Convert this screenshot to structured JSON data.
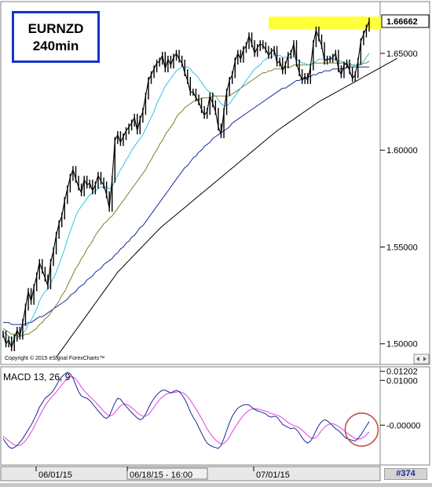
{
  "title": {
    "symbol": "EURNZD",
    "timeframe": "240min"
  },
  "copyright": "Copyright © 2015 eSignal ForexCharts™",
  "macd_label": "MACD 13, 26, 9",
  "chart_id": "#374",
  "colors": {
    "price": "#000000",
    "ma_cyan": "#2ec5e8",
    "ma_olive": "#8a7a2a",
    "ma_blue": "#1a2a9a",
    "ma_black": "#000000",
    "highlight": "#ffff3a",
    "macd_line": "#1a2a9a",
    "signal_line": "#e040e0",
    "circle": "#c0504d"
  },
  "chart_data": [
    {
      "type": "line",
      "name": "price",
      "ylim": [
        1.493,
        1.6735
      ],
      "yticks": [
        "1.50000",
        "1.55000",
        "1.60000",
        "1.65000"
      ],
      "yticks_values": [
        1.5,
        1.55,
        1.6,
        1.65
      ],
      "last_price_label": "1.66662",
      "last_price": 1.66662,
      "xtick_labels": [
        "06/01/15",
        "06/18/15 - 16:00",
        "07/01/15"
      ],
      "x_count": 132,
      "series": [
        {
          "key": "price",
          "values": [
            1.505,
            1.5,
            1.502,
            1.498,
            1.503,
            1.507,
            1.504,
            1.511,
            1.519,
            1.527,
            1.522,
            1.529,
            1.535,
            1.542,
            1.538,
            1.534,
            1.53,
            1.542,
            1.548,
            1.556,
            1.562,
            1.566,
            1.574,
            1.58,
            1.586,
            1.59,
            1.585,
            1.581,
            1.578,
            1.585,
            1.582,
            1.583,
            1.579,
            1.582,
            1.587,
            1.584,
            1.582,
            1.577,
            1.57,
            1.585,
            1.605,
            1.608,
            1.604,
            1.607,
            1.61,
            1.612,
            1.614,
            1.617,
            1.61,
            1.616,
            1.62,
            1.628,
            1.636,
            1.639,
            1.642,
            1.645,
            1.646,
            1.649,
            1.642,
            1.647,
            1.644,
            1.648,
            1.65,
            1.647,
            1.645,
            1.64,
            1.636,
            1.63,
            1.63,
            1.627,
            1.625,
            1.621,
            1.618,
            1.62,
            1.628,
            1.624,
            1.62,
            1.612,
            1.608,
            1.62,
            1.63,
            1.636,
            1.639,
            1.646,
            1.65,
            1.647,
            1.652,
            1.654,
            1.659,
            1.655,
            1.65,
            1.653,
            1.655,
            1.654,
            1.652,
            1.649,
            1.651,
            1.652,
            1.645,
            1.646,
            1.641,
            1.644,
            1.649,
            1.65,
            1.655,
            1.645,
            1.64,
            1.636,
            1.638,
            1.636,
            1.643,
            1.655,
            1.662,
            1.658,
            1.654,
            1.646,
            1.647,
            1.647,
            1.648,
            1.65,
            1.642,
            1.639,
            1.644,
            1.645,
            1.641,
            1.637,
            1.639,
            1.646,
            1.656,
            1.66,
            1.663,
            1.6666
          ]
        },
        {
          "key": "ma_cyan",
          "values": [
            1.506,
            1.505,
            1.504,
            1.503,
            1.503,
            1.503,
            1.504,
            1.505,
            1.507,
            1.51,
            1.512,
            1.515,
            1.518,
            1.522,
            1.525,
            1.527,
            1.528,
            1.531,
            1.534,
            1.537,
            1.541,
            1.545,
            1.549,
            1.554,
            1.558,
            1.562,
            1.566,
            1.569,
            1.571,
            1.573,
            1.575,
            1.577,
            1.578,
            1.579,
            1.58,
            1.581,
            1.581,
            1.581,
            1.58,
            1.581,
            1.584,
            1.587,
            1.59,
            1.592,
            1.595,
            1.597,
            1.6,
            1.602,
            1.604,
            1.606,
            1.608,
            1.611,
            1.614,
            1.617,
            1.62,
            1.624,
            1.627,
            1.63,
            1.633,
            1.635,
            1.637,
            1.639,
            1.641,
            1.642,
            1.643,
            1.643,
            1.643,
            1.642,
            1.64,
            1.639,
            1.637,
            1.635,
            1.633,
            1.631,
            1.63,
            1.629,
            1.628,
            1.626,
            1.624,
            1.623,
            1.623,
            1.624,
            1.626,
            1.628,
            1.63,
            1.632,
            1.634,
            1.636,
            1.638,
            1.64,
            1.642,
            1.643,
            1.644,
            1.646,
            1.647,
            1.648,
            1.648,
            1.649,
            1.649,
            1.649,
            1.648,
            1.648,
            1.648,
            1.648,
            1.648,
            1.647,
            1.646,
            1.645,
            1.645,
            1.644,
            1.644,
            1.645,
            1.646,
            1.647,
            1.647,
            1.647,
            1.647,
            1.647,
            1.647,
            1.647,
            1.646,
            1.646,
            1.645,
            1.645,
            1.645,
            1.644,
            1.643,
            1.644,
            1.645,
            1.646,
            1.648,
            1.65
          ]
        },
        {
          "key": "ma_olive",
          "values": [
            1.508,
            1.507,
            1.506,
            1.505,
            1.505,
            1.504,
            1.504,
            1.504,
            1.505,
            1.505,
            1.506,
            1.507,
            1.508,
            1.51,
            1.511,
            1.513,
            1.514,
            1.516,
            1.518,
            1.52,
            1.522,
            1.525,
            1.527,
            1.53,
            1.533,
            1.536,
            1.539,
            1.541,
            1.544,
            1.546,
            1.549,
            1.551,
            1.553,
            1.556,
            1.558,
            1.56,
            1.562,
            1.563,
            1.565,
            1.566,
            1.568,
            1.57,
            1.572,
            1.574,
            1.576,
            1.578,
            1.58,
            1.582,
            1.584,
            1.586,
            1.588,
            1.59,
            1.593,
            1.595,
            1.598,
            1.6,
            1.603,
            1.605,
            1.608,
            1.61,
            1.612,
            1.614,
            1.617,
            1.619,
            1.62,
            1.622,
            1.623,
            1.624,
            1.625,
            1.626,
            1.626,
            1.627,
            1.627,
            1.627,
            1.627,
            1.628,
            1.628,
            1.628,
            1.628,
            1.628,
            1.628,
            1.628,
            1.629,
            1.63,
            1.631,
            1.632,
            1.633,
            1.634,
            1.635,
            1.636,
            1.637,
            1.638,
            1.639,
            1.64,
            1.64,
            1.641,
            1.641,
            1.642,
            1.642,
            1.642,
            1.642,
            1.643,
            1.643,
            1.643,
            1.644,
            1.644,
            1.644,
            1.644,
            1.644,
            1.644,
            1.644,
            1.645,
            1.645,
            1.645,
            1.645,
            1.645,
            1.645,
            1.645,
            1.645,
            1.645,
            1.645,
            1.645,
            1.645,
            1.644,
            1.644,
            1.644,
            1.644,
            1.644,
            1.644,
            1.645,
            1.645,
            1.646
          ]
        },
        {
          "key": "ma_blue",
          "values": [
            1.511,
            1.511,
            1.511,
            1.51,
            1.51,
            1.51,
            1.51,
            1.51,
            1.51,
            1.511,
            1.511,
            1.512,
            1.513,
            1.514,
            1.514,
            1.515,
            1.516,
            1.517,
            1.518,
            1.519,
            1.52,
            1.521,
            1.522,
            1.523,
            1.525,
            1.526,
            1.527,
            1.529,
            1.53,
            1.531,
            1.533,
            1.534,
            1.535,
            1.537,
            1.538,
            1.539,
            1.541,
            1.542,
            1.543,
            1.544,
            1.546,
            1.547,
            1.549,
            1.55,
            1.552,
            1.553,
            1.555,
            1.556,
            1.558,
            1.56,
            1.561,
            1.563,
            1.565,
            1.567,
            1.569,
            1.571,
            1.573,
            1.575,
            1.577,
            1.579,
            1.581,
            1.583,
            1.585,
            1.587,
            1.589,
            1.591,
            1.592,
            1.594,
            1.596,
            1.597,
            1.599,
            1.6,
            1.602,
            1.603,
            1.604,
            1.606,
            1.607,
            1.608,
            1.609,
            1.61,
            1.611,
            1.612,
            1.614,
            1.615,
            1.616,
            1.617,
            1.618,
            1.619,
            1.62,
            1.621,
            1.622,
            1.623,
            1.624,
            1.625,
            1.626,
            1.627,
            1.628,
            1.629,
            1.63,
            1.631,
            1.632,
            1.632,
            1.633,
            1.634,
            1.635,
            1.636,
            1.636,
            1.637,
            1.637,
            1.638,
            1.638,
            1.639,
            1.639,
            1.64,
            1.64,
            1.641,
            1.641,
            1.641,
            1.642,
            1.642,
            1.642,
            1.642,
            1.642,
            1.643,
            1.643,
            1.643,
            1.643,
            1.643,
            1.643,
            1.643,
            1.643,
            1.643
          ]
        },
        {
          "key": "ma_black",
          "values": [
            null,
            null,
            null,
            null,
            null,
            null,
            null,
            null,
            null,
            null,
            null,
            null,
            null,
            null,
            null,
            null,
            null,
            null,
            null,
            1.493,
            1.495,
            1.497,
            1.499,
            1.501,
            1.503,
            1.505,
            1.507,
            1.509,
            1.511,
            1.513,
            1.515,
            1.517,
            1.519,
            1.521,
            1.523,
            1.525,
            1.527,
            1.529,
            1.531,
            1.533,
            1.535,
            1.537,
            1.5385,
            1.54,
            1.5415,
            1.543,
            1.5445,
            1.546,
            1.5475,
            1.549,
            1.5505,
            1.552,
            1.5535,
            1.555,
            1.5565,
            1.558,
            1.5595,
            1.5608,
            1.562,
            1.5632,
            1.5644,
            1.5656,
            1.5668,
            1.568,
            1.5692,
            1.5704,
            1.5716,
            1.5728,
            1.574,
            1.5752,
            1.5764,
            1.5776,
            1.5788,
            1.58,
            1.5812,
            1.5824,
            1.5836,
            1.5848,
            1.586,
            1.5872,
            1.5884,
            1.5896,
            1.5908,
            1.592,
            1.5932,
            1.5944,
            1.5956,
            1.5968,
            1.598,
            1.5992,
            1.6004,
            1.6016,
            1.6028,
            1.604,
            1.6052,
            1.6064,
            1.6076,
            1.6088,
            1.61,
            1.611,
            1.612,
            1.613,
            1.614,
            1.615,
            1.616,
            1.617,
            1.618,
            1.619,
            1.62,
            1.621,
            1.622,
            1.623,
            1.624,
            1.625,
            1.6258,
            1.6266,
            1.6274,
            1.6282,
            1.629,
            1.6298,
            1.6306,
            1.6314,
            1.6322,
            1.633,
            1.6338,
            1.6346,
            1.6354,
            1.6362,
            1.637,
            1.6378,
            1.6386,
            1.6394,
            1.6402,
            1.641,
            1.6418,
            1.6426,
            1.6434,
            1.6442,
            1.645,
            1.6458,
            1.6466,
            1.6474
          ]
        }
      ],
      "highlight_band": [
        1.6625,
        1.669
      ]
    },
    {
      "type": "line",
      "name": "macd",
      "ylim": [
        -0.0082,
        0.0125
      ],
      "yticks": [
        "0.01202",
        "0.01000",
        "0.00000"
      ],
      "yticks_values": [
        0.01202,
        0.01,
        0.0
      ],
      "x_count": 132,
      "series": [
        {
          "key": "macd_line",
          "values": [
            -0.003,
            -0.004,
            -0.0048,
            -0.0052,
            -0.005,
            -0.0045,
            -0.0038,
            -0.003,
            -0.002,
            -0.001,
            0.0,
            0.0012,
            0.0025,
            0.004,
            0.005,
            0.006,
            0.0065,
            0.007,
            0.0078,
            0.0088,
            0.01,
            0.0108,
            0.0114,
            0.0118,
            0.0115,
            0.0105,
            0.009,
            0.0075,
            0.0065,
            0.0062,
            0.006,
            0.0055,
            0.0048,
            0.004,
            0.0032,
            0.0025,
            0.0018,
            0.0015,
            0.002,
            0.0035,
            0.005,
            0.006,
            0.0058,
            0.005,
            0.0042,
            0.0035,
            0.0028,
            0.0022,
            0.0016,
            0.0012,
            0.0015,
            0.0025,
            0.0038,
            0.005,
            0.006,
            0.0068,
            0.0074,
            0.0078,
            0.0078,
            0.0075,
            0.0072,
            0.0075,
            0.0078,
            0.0075,
            0.0068,
            0.0058,
            0.0045,
            0.003,
            0.0018,
            0.0008,
            -0.0005,
            -0.0018,
            -0.003,
            -0.004,
            -0.0045,
            -0.0048,
            -0.005,
            -0.0052,
            -0.0045,
            -0.003,
            -0.0012,
            0.0005,
            0.002,
            0.003,
            0.0038,
            0.0042,
            0.0045,
            0.0046,
            0.0045,
            0.004,
            0.0035,
            0.0032,
            0.003,
            0.0028,
            0.0025,
            0.002,
            0.0018,
            0.002,
            0.0018,
            0.001,
            0.0002,
            -0.0002,
            -0.0005,
            -0.0008,
            -0.0006,
            -0.001,
            -0.0018,
            -0.0028,
            -0.0036,
            -0.004,
            -0.0036,
            -0.0025,
            -0.0012,
            0.0,
            0.0008,
            0.0012,
            0.001,
            0.0004,
            -0.0002,
            -0.0008,
            -0.0012,
            -0.0018,
            -0.0025,
            -0.003,
            -0.0032,
            -0.0034,
            -0.0035,
            -0.003,
            -0.0022,
            -0.0012,
            -0.0002,
            0.0008
          ]
        },
        {
          "key": "signal_line",
          "values": [
            -0.0025,
            -0.003,
            -0.0035,
            -0.004,
            -0.0044,
            -0.0046,
            -0.0045,
            -0.0041,
            -0.0035,
            -0.0026,
            -0.0016,
            -0.0005,
            0.0008,
            0.002,
            0.0032,
            0.0043,
            0.0052,
            0.006,
            0.0067,
            0.0074,
            0.0082,
            0.009,
            0.0098,
            0.0105,
            0.0108,
            0.0108,
            0.0103,
            0.0095,
            0.0085,
            0.0077,
            0.007,
            0.0064,
            0.0058,
            0.0052,
            0.0045,
            0.0038,
            0.0031,
            0.0025,
            0.0021,
            0.0022,
            0.0028,
            0.0036,
            0.0043,
            0.0047,
            0.0047,
            0.0044,
            0.0039,
            0.0034,
            0.0028,
            0.0023,
            0.002,
            0.002,
            0.0024,
            0.0031,
            0.004,
            0.0049,
            0.0057,
            0.0063,
            0.0068,
            0.0071,
            0.0072,
            0.0073,
            0.0074,
            0.0075,
            0.0073,
            0.007,
            0.0064,
            0.0056,
            0.0046,
            0.0036,
            0.0026,
            0.0015,
            0.0004,
            -0.0008,
            -0.0018,
            -0.0026,
            -0.0033,
            -0.0038,
            -0.0042,
            -0.0041,
            -0.0035,
            -0.0026,
            -0.0015,
            -0.0005,
            0.0005,
            0.0014,
            0.0022,
            0.0028,
            0.0033,
            0.0036,
            0.0037,
            0.0036,
            0.0035,
            0.0033,
            0.0031,
            0.0029,
            0.0026,
            0.0024,
            0.0022,
            0.002,
            0.0016,
            0.0011,
            0.0006,
            0.0002,
            -0.0001,
            -0.0003,
            -0.0006,
            -0.0011,
            -0.0017,
            -0.0023,
            -0.0028,
            -0.003,
            -0.0027,
            -0.002,
            -0.0012,
            -0.0005,
            0.0,
            0.0003,
            0.0003,
            0.0001,
            -0.0003,
            -0.0007,
            -0.0012,
            -0.0017,
            -0.0022,
            -0.0026,
            -0.003,
            -0.0031,
            -0.0031,
            -0.0027,
            -0.0022,
            -0.0015
          ]
        }
      ]
    }
  ]
}
